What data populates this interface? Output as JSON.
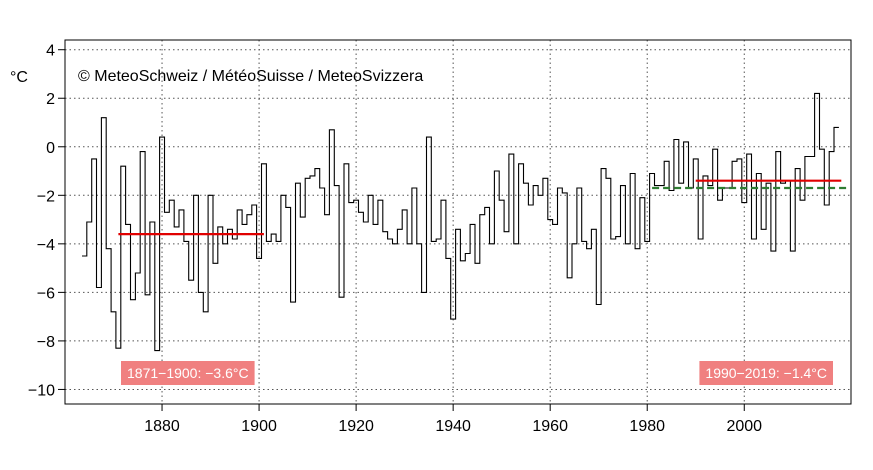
{
  "chart_data": {
    "type": "line",
    "step": true,
    "copyright": "© MeteoSchweiz / MétéoSuisse / MeteoSvizzera",
    "ylabel": "°C",
    "xlim": [
      1860,
      2022
    ],
    "ylim": [
      -10.6,
      4.4
    ],
    "x_ticks": [
      1880,
      1900,
      1920,
      1940,
      1960,
      1980,
      2000
    ],
    "y_ticks": [
      4,
      2,
      0,
      -2,
      -4,
      -6,
      -8,
      -10
    ],
    "grid": true,
    "series": [
      {
        "style": "step",
        "color": "#000000",
        "x": [
          1864,
          1865,
          1866,
          1867,
          1868,
          1869,
          1870,
          1871,
          1872,
          1873,
          1874,
          1875,
          1876,
          1877,
          1878,
          1879,
          1880,
          1881,
          1882,
          1883,
          1884,
          1885,
          1886,
          1887,
          1888,
          1889,
          1890,
          1891,
          1892,
          1893,
          1894,
          1895,
          1896,
          1897,
          1898,
          1899,
          1900,
          1901,
          1902,
          1903,
          1904,
          1905,
          1906,
          1907,
          1908,
          1909,
          1910,
          1911,
          1912,
          1913,
          1914,
          1915,
          1916,
          1917,
          1918,
          1919,
          1920,
          1921,
          1922,
          1923,
          1924,
          1925,
          1926,
          1927,
          1928,
          1929,
          1930,
          1931,
          1932,
          1933,
          1934,
          1935,
          1936,
          1937,
          1938,
          1939,
          1940,
          1941,
          1942,
          1943,
          1944,
          1945,
          1946,
          1947,
          1948,
          1949,
          1950,
          1951,
          1952,
          1953,
          1954,
          1955,
          1956,
          1957,
          1958,
          1959,
          1960,
          1961,
          1962,
          1963,
          1964,
          1965,
          1966,
          1967,
          1968,
          1969,
          1970,
          1971,
          1972,
          1973,
          1974,
          1975,
          1976,
          1977,
          1978,
          1979,
          1980,
          1981,
          1982,
          1983,
          1984,
          1985,
          1986,
          1987,
          1988,
          1989,
          1990,
          1991,
          1992,
          1993,
          1994,
          1995,
          1996,
          1997,
          1998,
          1999,
          2000,
          2001,
          2002,
          2003,
          2004,
          2005,
          2006,
          2007,
          2008,
          2009,
          2010,
          2011,
          2012,
          2013,
          2014,
          2015,
          2016,
          2017,
          2018,
          2019
        ],
        "values": [
          -4.5,
          -3.1,
          -0.5,
          -5.8,
          1.2,
          -4.2,
          -6.8,
          -8.3,
          -0.8,
          -3.2,
          -6.3,
          -5.2,
          -0.2,
          -6.1,
          -3.1,
          -8.4,
          0.4,
          -2.7,
          -2.2,
          -3.3,
          -2.6,
          -3.9,
          -5.5,
          -2.0,
          -6.0,
          -6.8,
          -2.0,
          -4.8,
          -3.3,
          -4.0,
          -3.4,
          -3.8,
          -2.6,
          -3.2,
          -2.8,
          -2.4,
          -4.6,
          -0.7,
          -3.9,
          -3.6,
          -3.9,
          -2.0,
          -2.5,
          -6.4,
          -1.5,
          -2.9,
          -1.3,
          -1.2,
          -0.9,
          -1.7,
          -2.8,
          0.7,
          -1.6,
          -6.2,
          -0.7,
          -2.3,
          -2.2,
          -2.7,
          -3.1,
          -2.0,
          -3.2,
          -2.2,
          -3.5,
          -3.8,
          -4.0,
          -3.4,
          -2.6,
          -4.0,
          -1.7,
          -4.0,
          -6.0,
          0.4,
          -3.9,
          -3.8,
          -2.2,
          -4.6,
          -7.1,
          -3.4,
          -4.7,
          -4.4,
          -3.2,
          -4.8,
          -2.8,
          -2.5,
          -4.0,
          -1.0,
          -2.2,
          -3.5,
          -0.3,
          -4.0,
          -0.7,
          -1.5,
          -2.4,
          -1.6,
          -2.0,
          -1.3,
          -3.0,
          -3.2,
          -1.7,
          -1.9,
          -5.4,
          -4.0,
          -1.7,
          -3.9,
          -4.2,
          -3.4,
          -6.5,
          -0.9,
          -1.3,
          -3.8,
          -3.7,
          -1.6,
          -4.0,
          -1.1,
          -4.2,
          -2.1,
          -3.9,
          -1.1,
          -1.6,
          -1.6,
          -0.6,
          -1.8,
          0.3,
          -1.5,
          0.2,
          -1.7,
          -0.5,
          -3.8,
          -1.2,
          -1.6,
          -0.1,
          -2.2,
          -1.7,
          -1.7,
          -0.6,
          -0.5,
          -2.3,
          -0.3,
          -3.8,
          -1.1,
          -3.4,
          -1.5,
          -4.3,
          -0.2,
          -1.5,
          -1.4,
          -4.3,
          -0.9,
          -2.2,
          -0.4,
          -0.4,
          2.2,
          -0.1,
          -2.4,
          -0.2,
          0.8
        ]
      },
      {
        "style": "solid",
        "color": "#e00000",
        "x": [
          1871,
          1901
        ],
        "values": [
          -3.6,
          -3.6
        ]
      },
      {
        "style": "solid",
        "color": "#e00000",
        "x": [
          1990,
          2020
        ],
        "values": [
          -1.4,
          -1.4
        ]
      },
      {
        "style": "dashed",
        "color": "#2e7d32",
        "x": [
          1981,
          2021
        ],
        "values": [
          -1.7,
          -1.7
        ]
      }
    ],
    "annotations": [
      {
        "text": "1871−1900: −3.6°C",
        "anchor": "bottom-left",
        "color": "#f08080"
      },
      {
        "text": "1990−2019: −1.4°C",
        "anchor": "bottom-right",
        "color": "#f08080"
      }
    ]
  }
}
